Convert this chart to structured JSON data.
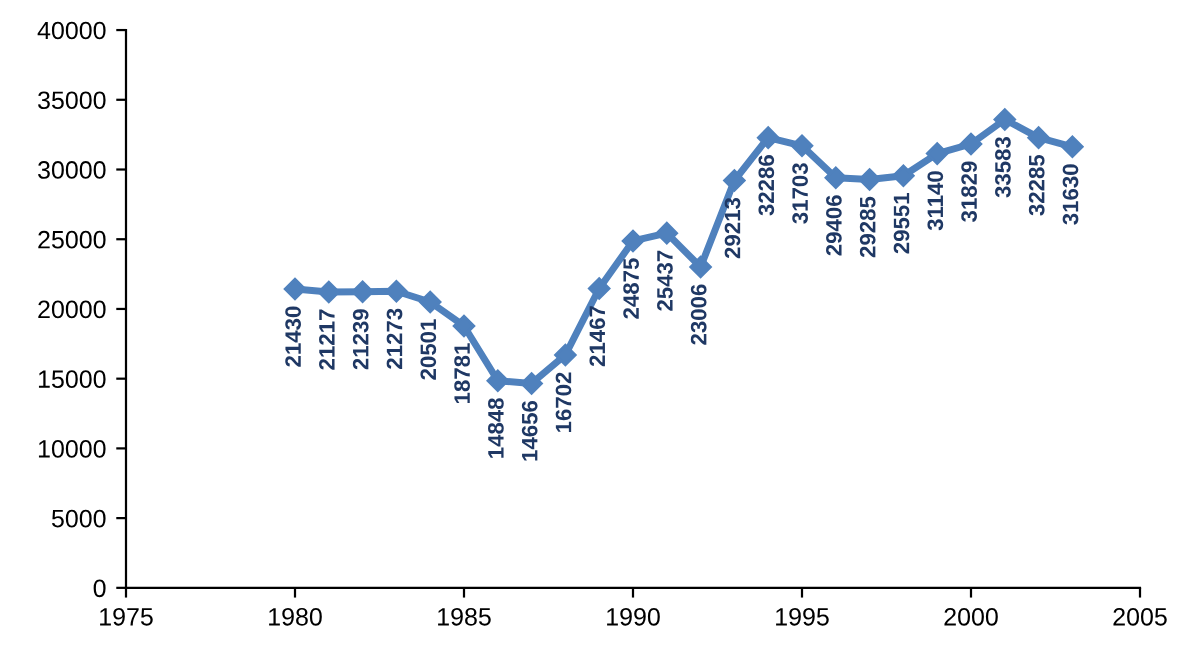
{
  "chart_data": {
    "type": "line",
    "x": [
      1980,
      1981,
      1982,
      1983,
      1984,
      1985,
      1986,
      1987,
      1988,
      1989,
      1990,
      1991,
      1992,
      1993,
      1994,
      1995,
      1996,
      1997,
      1998,
      1999,
      2000,
      2001,
      2002,
      2003
    ],
    "series": [
      {
        "color": "#4f81bd",
        "values": [
          21430,
          21217,
          21239,
          21273,
          20501,
          18781,
          14848,
          14656,
          16702,
          21467,
          24875,
          25437,
          23006,
          29213,
          32286,
          31703,
          29406,
          29285,
          29551,
          31140,
          31829,
          33583,
          32285,
          31630
        ]
      }
    ],
    "xlim": [
      1975,
      2005
    ],
    "xticks": [
      1975,
      1980,
      1985,
      1990,
      1995,
      2000,
      2005
    ],
    "ylim": [
      0,
      40000
    ],
    "yticks": [
      0,
      5000,
      10000,
      15000,
      20000,
      25000,
      30000,
      35000,
      40000
    ],
    "data_labels": true,
    "marker": "diamond",
    "line_style": "solid",
    "grid": false,
    "legend": false
  }
}
